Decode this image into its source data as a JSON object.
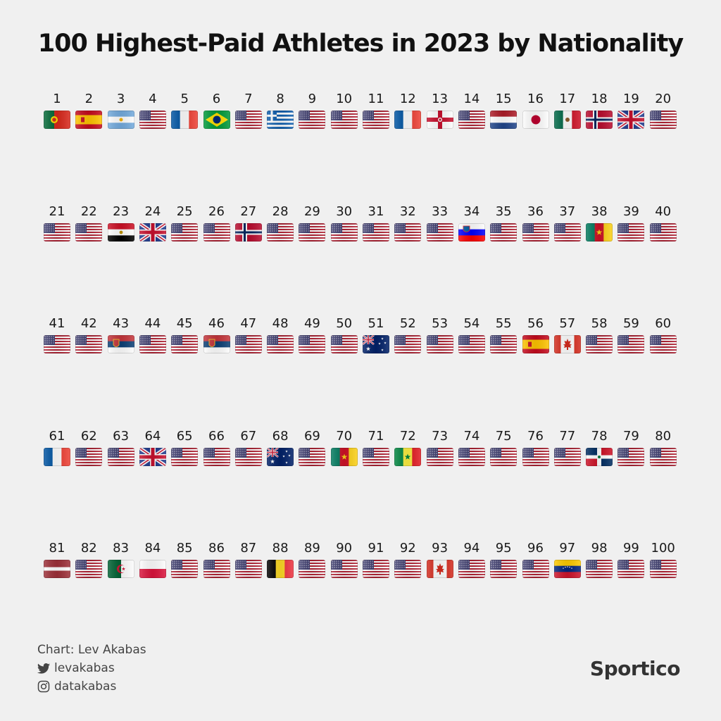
{
  "title": "100 Highest-Paid Athletes in 2023 by Nationality",
  "athletes": [
    {
      "rank": "1",
      "flag": "portugal"
    },
    {
      "rank": "2",
      "flag": "spain"
    },
    {
      "rank": "3",
      "flag": "argentina"
    },
    {
      "rank": "4",
      "flag": "usa"
    },
    {
      "rank": "5",
      "flag": "france"
    },
    {
      "rank": "6",
      "flag": "brazil"
    },
    {
      "rank": "7",
      "flag": "usa"
    },
    {
      "rank": "8",
      "flag": "greece"
    },
    {
      "rank": "9",
      "flag": "usa"
    },
    {
      "rank": "10",
      "flag": "usa"
    },
    {
      "rank": "11",
      "flag": "usa"
    },
    {
      "rank": "12",
      "flag": "france"
    },
    {
      "rank": "13",
      "flag": "northern-ireland"
    },
    {
      "rank": "14",
      "flag": "usa"
    },
    {
      "rank": "15",
      "flag": "netherlands"
    },
    {
      "rank": "16",
      "flag": "japan"
    },
    {
      "rank": "17",
      "flag": "mexico"
    },
    {
      "rank": "18",
      "flag": "norway"
    },
    {
      "rank": "19",
      "flag": "uk"
    },
    {
      "rank": "20",
      "flag": "usa"
    },
    {
      "rank": "21",
      "flag": "usa"
    },
    {
      "rank": "22",
      "flag": "usa"
    },
    {
      "rank": "23",
      "flag": "egypt"
    },
    {
      "rank": "24",
      "flag": "uk"
    },
    {
      "rank": "25",
      "flag": "usa"
    },
    {
      "rank": "26",
      "flag": "usa"
    },
    {
      "rank": "27",
      "flag": "norway"
    },
    {
      "rank": "28",
      "flag": "usa"
    },
    {
      "rank": "29",
      "flag": "usa"
    },
    {
      "rank": "30",
      "flag": "usa"
    },
    {
      "rank": "31",
      "flag": "usa"
    },
    {
      "rank": "32",
      "flag": "usa"
    },
    {
      "rank": "33",
      "flag": "usa"
    },
    {
      "rank": "34",
      "flag": "slovenia"
    },
    {
      "rank": "35",
      "flag": "usa"
    },
    {
      "rank": "36",
      "flag": "usa"
    },
    {
      "rank": "37",
      "flag": "usa"
    },
    {
      "rank": "38",
      "flag": "cameroon"
    },
    {
      "rank": "39",
      "flag": "usa"
    },
    {
      "rank": "40",
      "flag": "usa"
    },
    {
      "rank": "41",
      "flag": "usa"
    },
    {
      "rank": "42",
      "flag": "usa"
    },
    {
      "rank": "43",
      "flag": "serbia"
    },
    {
      "rank": "44",
      "flag": "usa"
    },
    {
      "rank": "45",
      "flag": "usa"
    },
    {
      "rank": "46",
      "flag": "serbia"
    },
    {
      "rank": "47",
      "flag": "usa"
    },
    {
      "rank": "48",
      "flag": "usa"
    },
    {
      "rank": "49",
      "flag": "usa"
    },
    {
      "rank": "50",
      "flag": "usa"
    },
    {
      "rank": "51",
      "flag": "australia"
    },
    {
      "rank": "52",
      "flag": "usa"
    },
    {
      "rank": "53",
      "flag": "usa"
    },
    {
      "rank": "54",
      "flag": "usa"
    },
    {
      "rank": "55",
      "flag": "usa"
    },
    {
      "rank": "56",
      "flag": "spain"
    },
    {
      "rank": "57",
      "flag": "canada"
    },
    {
      "rank": "58",
      "flag": "usa"
    },
    {
      "rank": "59",
      "flag": "usa"
    },
    {
      "rank": "60",
      "flag": "usa"
    },
    {
      "rank": "61",
      "flag": "france"
    },
    {
      "rank": "62",
      "flag": "usa"
    },
    {
      "rank": "63",
      "flag": "usa"
    },
    {
      "rank": "64",
      "flag": "uk"
    },
    {
      "rank": "65",
      "flag": "usa"
    },
    {
      "rank": "66",
      "flag": "usa"
    },
    {
      "rank": "67",
      "flag": "usa"
    },
    {
      "rank": "68",
      "flag": "australia"
    },
    {
      "rank": "69",
      "flag": "usa"
    },
    {
      "rank": "70",
      "flag": "cameroon"
    },
    {
      "rank": "71",
      "flag": "usa"
    },
    {
      "rank": "72",
      "flag": "senegal"
    },
    {
      "rank": "73",
      "flag": "usa"
    },
    {
      "rank": "74",
      "flag": "usa"
    },
    {
      "rank": "75",
      "flag": "usa"
    },
    {
      "rank": "76",
      "flag": "usa"
    },
    {
      "rank": "77",
      "flag": "usa"
    },
    {
      "rank": "78",
      "flag": "dominican-republic"
    },
    {
      "rank": "79",
      "flag": "usa"
    },
    {
      "rank": "80",
      "flag": "usa"
    },
    {
      "rank": "81",
      "flag": "latvia"
    },
    {
      "rank": "82",
      "flag": "usa"
    },
    {
      "rank": "83",
      "flag": "algeria"
    },
    {
      "rank": "84",
      "flag": "poland"
    },
    {
      "rank": "85",
      "flag": "usa"
    },
    {
      "rank": "86",
      "flag": "usa"
    },
    {
      "rank": "87",
      "flag": "usa"
    },
    {
      "rank": "88",
      "flag": "belgium"
    },
    {
      "rank": "89",
      "flag": "usa"
    },
    {
      "rank": "90",
      "flag": "usa"
    },
    {
      "rank": "91",
      "flag": "usa"
    },
    {
      "rank": "92",
      "flag": "usa"
    },
    {
      "rank": "93",
      "flag": "canada"
    },
    {
      "rank": "94",
      "flag": "usa"
    },
    {
      "rank": "95",
      "flag": "usa"
    },
    {
      "rank": "96",
      "flag": "usa"
    },
    {
      "rank": "97",
      "flag": "venezuela"
    },
    {
      "rank": "98",
      "flag": "usa"
    },
    {
      "rank": "99",
      "flag": "usa"
    },
    {
      "rank": "100",
      "flag": "usa"
    }
  ],
  "credits": {
    "chart": "Chart: Lev Akabas",
    "twitter": "levakabas",
    "instagram": "datakabas",
    "twitter_icon": "twitter-bird-icon",
    "instagram_icon": "instagram-icon"
  },
  "brand": "Sportico"
}
